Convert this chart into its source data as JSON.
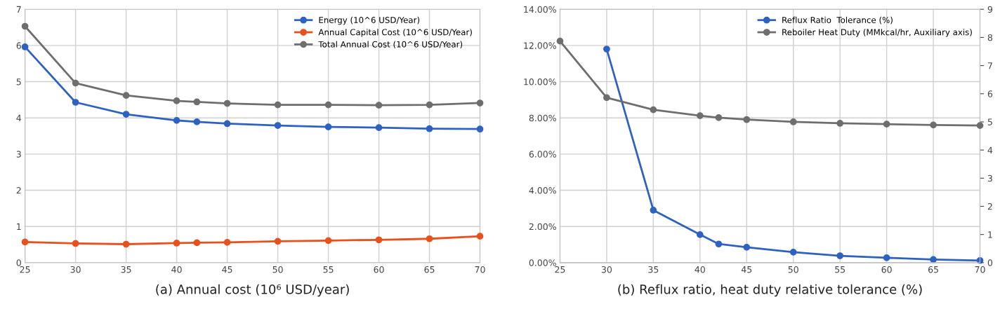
{
  "chart_data": [
    {
      "type": "line",
      "xlabel": "(a) Annual cost (10⁶ USD/year)",
      "x": [
        25,
        30,
        35,
        40,
        42,
        45,
        50,
        55,
        60,
        65,
        70
      ],
      "xlim": [
        25,
        70
      ],
      "xticks": [
        25,
        30,
        35,
        40,
        45,
        50,
        55,
        60,
        65,
        70
      ],
      "ylim": [
        0,
        7
      ],
      "yticks": [
        0,
        1,
        2,
        3,
        4,
        5,
        6,
        7
      ],
      "grid": true,
      "legend": "top right",
      "marker": "circle",
      "line_style": "solid",
      "series": [
        {
          "name": "Energy (10^6 USD/Year)",
          "color": "#2e62c0",
          "values": [
            5.96,
            4.43,
            4.1,
            3.93,
            3.89,
            3.84,
            3.79,
            3.75,
            3.73,
            3.7,
            3.69
          ]
        },
        {
          "name": "Annual Capital Cost (10^6 USD/Year)",
          "color": "#e8501c",
          "values": [
            0.57,
            0.53,
            0.51,
            0.54,
            0.55,
            0.56,
            0.59,
            0.61,
            0.63,
            0.66,
            0.73
          ]
        },
        {
          "name": "Total Annual Cost (10^6 USD/Year)",
          "color": "#6e6e6e",
          "values": [
            6.53,
            4.96,
            4.62,
            4.47,
            4.44,
            4.4,
            4.36,
            4.36,
            4.35,
            4.36,
            4.41
          ]
        }
      ]
    },
    {
      "type": "line",
      "xlabel": "(b) Reflux ratio, heat duty relative tolerance (%)",
      "x": [
        25,
        30,
        35,
        40,
        42,
        45,
        50,
        55,
        60,
        65,
        70
      ],
      "xlim": [
        25,
        70
      ],
      "xticks": [
        25,
        30,
        35,
        40,
        45,
        50,
        55,
        60,
        65,
        70
      ],
      "ylim": [
        0,
        14
      ],
      "yticks": [
        {
          "value": 0,
          "label": "0.00%"
        },
        {
          "value": 2,
          "label": "2.00%"
        },
        {
          "value": 4,
          "label": "4.00%"
        },
        {
          "value": 6,
          "label": "6.00%"
        },
        {
          "value": 8,
          "label": "8.00%"
        },
        {
          "value": 10,
          "label": "10.00%"
        },
        {
          "value": 12,
          "label": "12.00%"
        },
        {
          "value": 14,
          "label": "14.00%"
        }
      ],
      "y2lim": [
        0,
        9
      ],
      "y2ticks": [
        0,
        1,
        2,
        3,
        4,
        5,
        6,
        7,
        8,
        9
      ],
      "grid": true,
      "legend": "top right",
      "marker": "circle",
      "line_style": "solid",
      "series": [
        {
          "name": "Reflux Ratio  Tolerance (%)",
          "color": "#2e62c0",
          "values": [
            null,
            11.8,
            2.9,
            1.55,
            1.03,
            0.85,
            0.58,
            0.38,
            0.27,
            0.17,
            0.12
          ]
        },
        {
          "name": "Reboiler Heat Duty (MMkcal/hr, Auxiliary axis)",
          "color": "#6e6e6e",
          "axis": "y2",
          "values": [
            7.87,
            5.86,
            5.43,
            5.22,
            5.15,
            5.08,
            5.0,
            4.95,
            4.92,
            4.89,
            4.87
          ]
        }
      ]
    }
  ]
}
